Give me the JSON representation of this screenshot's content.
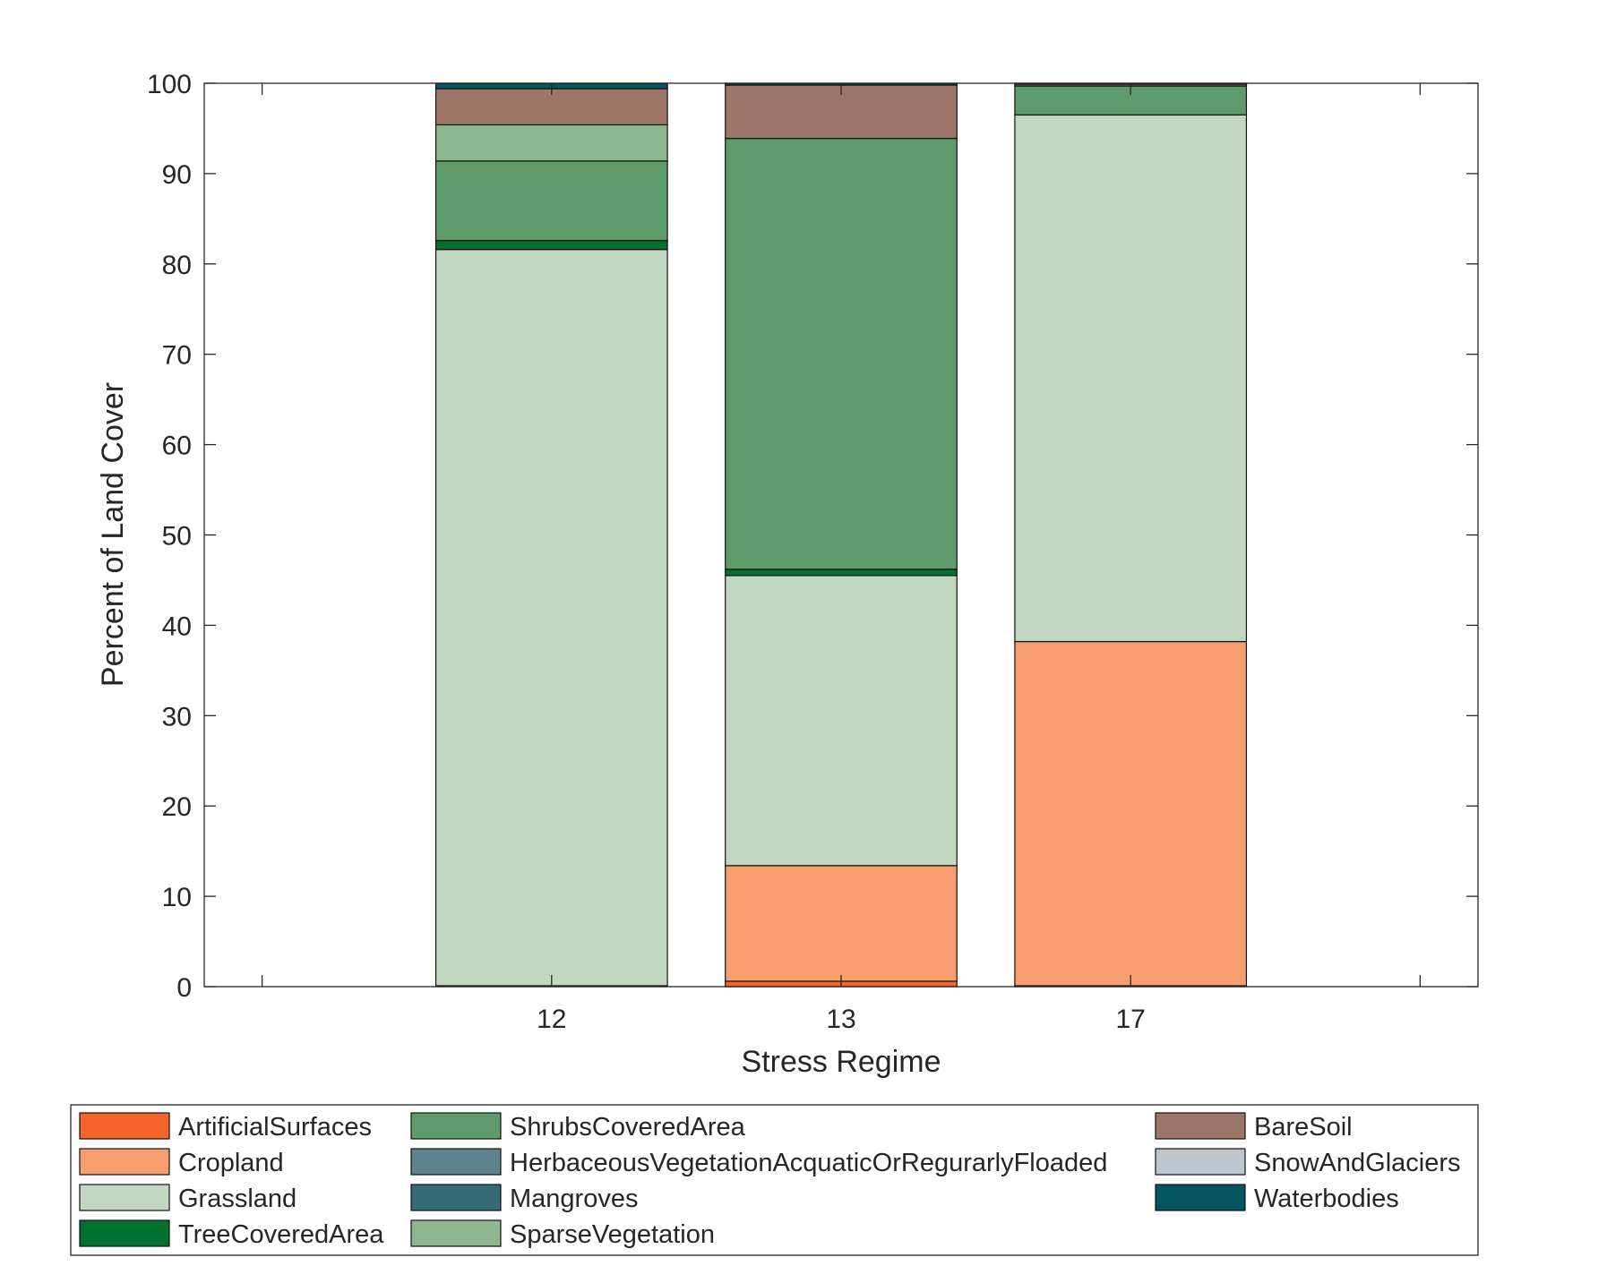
{
  "chart_data": {
    "type": "bar",
    "stacked": true,
    "title": "",
    "xlabel": "Stress Regime",
    "ylabel": "Percent of Land Cover",
    "categories": [
      "12",
      "13",
      "17"
    ],
    "category_positions": [
      2,
      3,
      4
    ],
    "xlim": [
      0.8,
      5.2
    ],
    "xticks": [
      1,
      2,
      3,
      4,
      5
    ],
    "xtick_labels": [
      "",
      "12",
      "13",
      "17",
      ""
    ],
    "ylim": [
      0,
      100
    ],
    "yticks": [
      0,
      10,
      20,
      30,
      40,
      50,
      60,
      70,
      80,
      90,
      100
    ],
    "grid": false,
    "legend_position": "bottom",
    "series": [
      {
        "name": "ArtificialSurfaces",
        "color": "#F4642B",
        "values": [
          0.1,
          0.6,
          0.1
        ]
      },
      {
        "name": "Cropland",
        "color": "#F79E6E",
        "values": [
          0.0,
          12.8,
          38.1
        ]
      },
      {
        "name": "Grassland",
        "color": "#C1D7C2",
        "values": [
          81.5,
          32.1,
          58.3
        ]
      },
      {
        "name": "TreeCoveredArea",
        "color": "#02702E",
        "values": [
          1.0,
          0.7,
          0.0
        ]
      },
      {
        "name": "ShrubsCoveredArea",
        "color": "#5E9B6B",
        "values": [
          8.8,
          47.7,
          3.2
        ]
      },
      {
        "name": "HerbaceousVegetationAcquaticOrRegurarlyFloaded",
        "color": "#5E838C",
        "values": [
          0.0,
          0.0,
          0.0
        ]
      },
      {
        "name": "Mangroves",
        "color": "#336A73",
        "values": [
          0.0,
          0.0,
          0.0
        ]
      },
      {
        "name": "SparseVegetation",
        "color": "#8DB790",
        "values": [
          4.0,
          0.0,
          0.0
        ]
      },
      {
        "name": "BareSoil",
        "color": "#9C7768",
        "values": [
          4.0,
          5.9,
          0.2
        ]
      },
      {
        "name": "SnowAndGlaciers",
        "color": "#C0C6CE",
        "values": [
          0.0,
          0.0,
          0.0
        ]
      },
      {
        "name": "Waterbodies",
        "color": "#03555F",
        "values": [
          0.6,
          0.2,
          0.1
        ]
      }
    ]
  }
}
